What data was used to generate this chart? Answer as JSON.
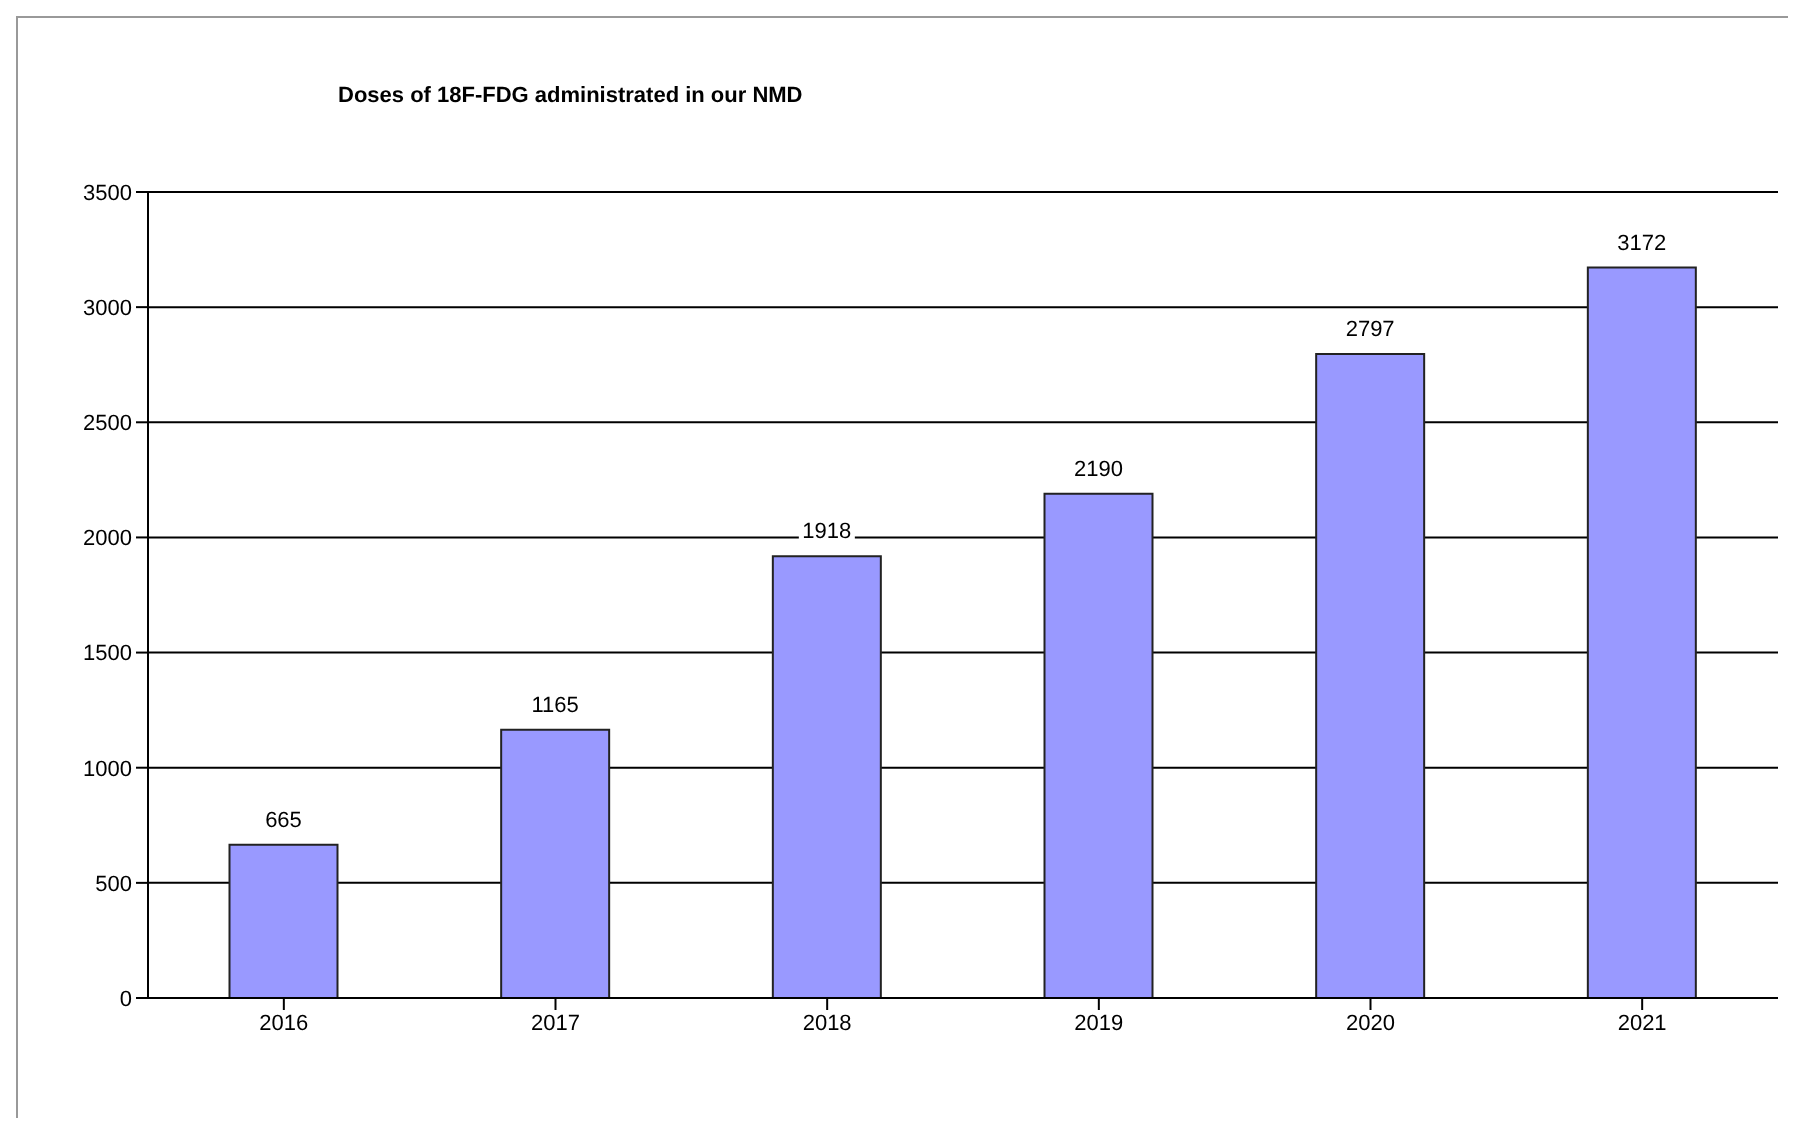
{
  "chart_data": {
    "type": "bar",
    "title": "Doses of 18F-FDG administrated in our NMD",
    "categories": [
      "2016",
      "2017",
      "2018",
      "2019",
      "2020",
      "2021"
    ],
    "values": [
      665,
      1165,
      1918,
      2190,
      2797,
      3172
    ],
    "color": "#9999ff",
    "ylim": [
      0,
      3500
    ],
    "yticks": [
      0,
      500,
      1000,
      1500,
      2000,
      2500,
      3000,
      3500
    ],
    "grid": "y",
    "data_labels": true,
    "legend": false
  }
}
